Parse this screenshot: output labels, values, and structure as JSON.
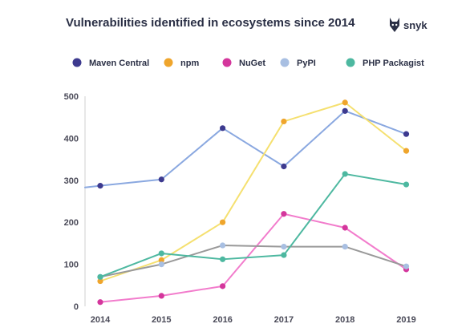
{
  "title": "Vulnerabilities identified in ecosystems since 2014",
  "brand": {
    "name": "snyk",
    "icon": "dog-head-logo-icon"
  },
  "chart_data": {
    "type": "line",
    "title": "Vulnerabilities identified in ecosystems since 2014",
    "x": [
      "2014",
      "2015",
      "2016",
      "2017",
      "2018",
      "2019"
    ],
    "ylim": [
      0,
      500
    ],
    "yticks": [
      0,
      100,
      200,
      300,
      400,
      500
    ],
    "grid": false,
    "legend_position": "top",
    "series": [
      {
        "name": "Maven Central",
        "marker_color": "#3d3a8f",
        "line_color": "#8aa8e0",
        "values": [
          287,
          302,
          424,
          333,
          465,
          410
        ],
        "line_start": 283
      },
      {
        "name": "npm",
        "marker_color": "#efa52c",
        "line_color": "#f5e070",
        "values": [
          60,
          110,
          200,
          440,
          485,
          370
        ]
      },
      {
        "name": "NuGet",
        "marker_color": "#d4369c",
        "line_color": "#f27ccc",
        "values": [
          10,
          25,
          48,
          220,
          187,
          88
        ]
      },
      {
        "name": "PyPI",
        "marker_color": "#a8bfe2",
        "line_color": "#999999",
        "values": [
          70,
          100,
          145,
          142,
          142,
          95
        ]
      },
      {
        "name": "PHP Packagist",
        "marker_color": "#4db8a0",
        "line_color": "#4db8a0",
        "values": [
          70,
          126,
          112,
          122,
          315,
          290
        ]
      }
    ]
  }
}
